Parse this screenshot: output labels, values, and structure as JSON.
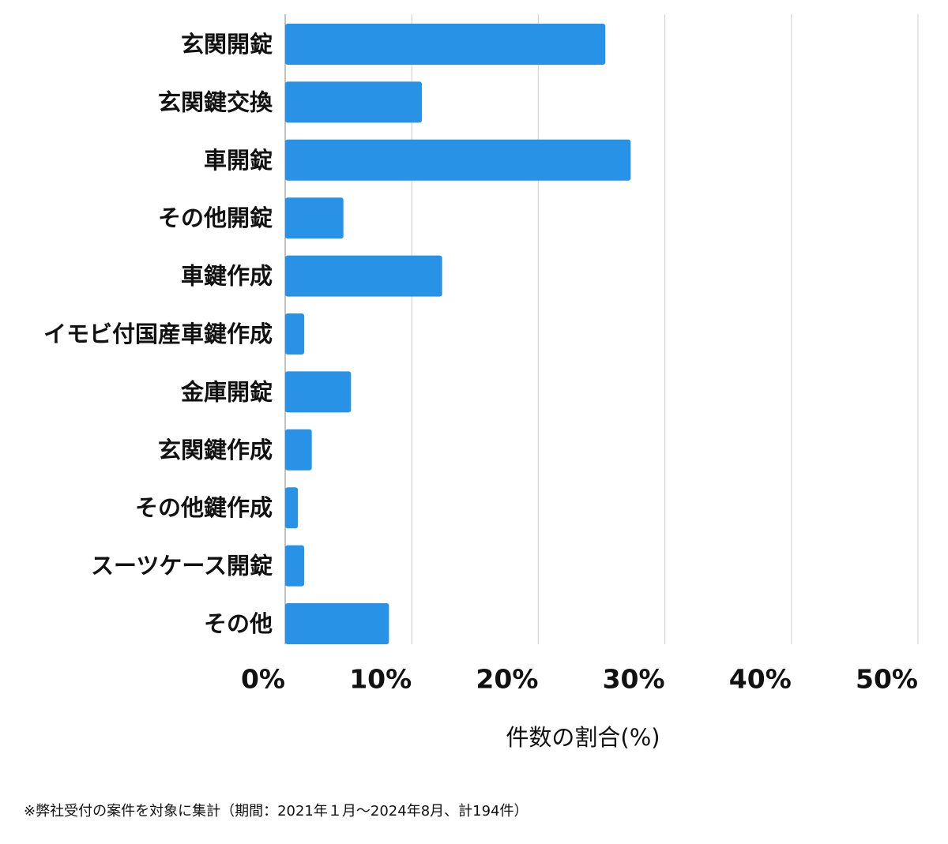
{
  "chart_data": {
    "type": "bar",
    "orientation": "horizontal",
    "categories": [
      "玄関開錠",
      "玄関鍵交換",
      "車開錠",
      "その他開錠",
      "車鍵作成",
      "イモビ付国産車鍵作成",
      "金庫開錠",
      "玄関鍵作成",
      "その他鍵作成",
      "スーツケース開錠",
      "その他"
    ],
    "values": [
      25.3,
      10.8,
      27.3,
      4.6,
      12.4,
      1.5,
      5.2,
      2.1,
      1.0,
      1.5,
      8.2
    ],
    "color": "#2893e6",
    "xlabel": "件数の割合(%)",
    "xlim": [
      0,
      50
    ],
    "xticks": [
      {
        "value": 0,
        "label": "0%"
      },
      {
        "value": 10,
        "label": "10%"
      },
      {
        "value": 20,
        "label": "20%"
      },
      {
        "value": 30,
        "label": "30%"
      },
      {
        "value": 40,
        "label": "40%"
      },
      {
        "value": 50,
        "label": "50%"
      }
    ],
    "grid": true
  },
  "footnote": "※弊社受付の案件を対象に集計（期間：2021年１月〜2024年8月、計194件）"
}
